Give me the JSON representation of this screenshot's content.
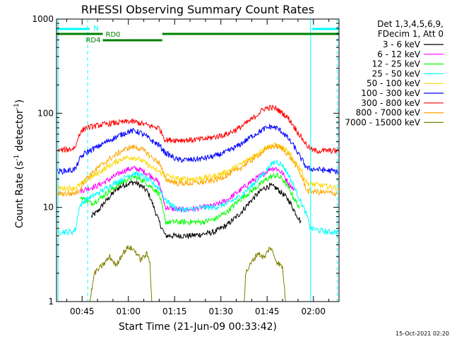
{
  "chart_data": {
    "type": "line",
    "title": "RHESSI Observing Summary Count Rates",
    "xlabel": "Start Time (21-Jun-09 00:33:42)",
    "ylabel_main": "Count Rate (s",
    "ylabel_sup1": "-1",
    "ylabel_mid": " detector",
    "ylabel_sup2": "-1",
    "ylabel_end": ")",
    "y_scale": "log",
    "ylim": [
      1,
      1000
    ],
    "xlim_min": [
      36.7,
      128.3
    ],
    "y_ticks": [
      {
        "value": 1,
        "label": "1"
      },
      {
        "value": 10,
        "label": "10"
      },
      {
        "value": 100,
        "label": "100"
      },
      {
        "value": 1000,
        "label": "1000"
      }
    ],
    "x_ticks": [
      {
        "value": 45,
        "label": "00:45"
      },
      {
        "value": 60,
        "label": "01:00"
      },
      {
        "value": 75,
        "label": "01:15"
      },
      {
        "value": 90,
        "label": "01:30"
      },
      {
        "value": 105,
        "label": "01:45"
      },
      {
        "value": 120,
        "label": "02:00"
      }
    ],
    "legend_header": [
      "Det 1,3,4,5,6,9,",
      "FDecim 1, Att 0"
    ],
    "legend_placement": "right",
    "series": [
      {
        "name": "3 - 6 keV",
        "color": "#000000",
        "x": [
          48,
          50,
          52,
          54,
          56,
          58,
          60,
          62,
          64,
          66,
          67,
          70,
          72,
          76,
          80,
          84,
          88,
          92,
          96,
          100,
          102,
          104,
          106,
          108,
          110,
          112,
          114,
          116
        ],
        "y": [
          8,
          9,
          11,
          13,
          15.5,
          17,
          18,
          18.5,
          17,
          15,
          13,
          7,
          5,
          5,
          5,
          5.2,
          5.5,
          6.5,
          8.5,
          12,
          14,
          16,
          17,
          16,
          14,
          12,
          9,
          7
        ]
      },
      {
        "name": "6 - 12 keV",
        "color": "#ff00ff",
        "x": [
          44.5,
          47,
          50,
          54,
          58,
          60,
          62,
          64,
          66,
          68,
          70,
          72,
          76,
          80,
          84,
          88,
          92,
          96,
          100,
          104,
          106,
          108,
          110,
          112,
          114
        ],
        "y": [
          15,
          16,
          17,
          20,
          24,
          25.5,
          26,
          25,
          23,
          21,
          18,
          10,
          9.5,
          9.5,
          10,
          10.5,
          12,
          15,
          19,
          23,
          26,
          26,
          23,
          18,
          15
        ]
      },
      {
        "name": "12 - 25 keV",
        "color": "#00ff00",
        "x": [
          44.5,
          46,
          48,
          50,
          54,
          58,
          60,
          62,
          64,
          66,
          68,
          70,
          72,
          76,
          80,
          84,
          88,
          92,
          96,
          100,
          104,
          106,
          108,
          110,
          112,
          114,
          115.5
        ],
        "y": [
          13,
          12,
          11,
          12,
          15,
          18.5,
          20,
          21,
          20,
          18,
          16,
          14,
          7,
          7,
          7,
          7,
          7.5,
          9,
          12,
          15,
          19,
          21,
          22,
          20,
          16,
          12,
          10
        ]
      },
      {
        "name": "25 - 50 keV",
        "color": "#00ffff",
        "x": [
          37,
          42,
          43,
          44,
          46,
          48,
          50,
          54,
          58,
          60,
          62,
          64,
          66,
          68,
          70,
          72,
          76,
          80,
          84,
          88,
          92,
          96,
          100,
          104,
          106,
          108,
          110,
          112,
          114,
          118,
          119,
          124,
          128
        ],
        "y": [
          5.5,
          5.5,
          6,
          10,
          12,
          13,
          14,
          17,
          20,
          22,
          23,
          22,
          20,
          18,
          16,
          12,
          9.5,
          9.5,
          10,
          10,
          11,
          13,
          17,
          23,
          28,
          31,
          28,
          22,
          16,
          8,
          6,
          5.5,
          5.5
        ]
      },
      {
        "name": "50 - 100 keV",
        "color": "#ffd700",
        "x": [
          37,
          42,
          44,
          46,
          50,
          54,
          58,
          60,
          62,
          64,
          66,
          68,
          70,
          72,
          76,
          80,
          84,
          88,
          92,
          96,
          100,
          104,
          106,
          108,
          110,
          112,
          114,
          116,
          118,
          128
        ],
        "y": [
          16,
          16,
          17,
          19,
          23,
          28,
          33,
          34,
          34,
          32,
          29,
          26,
          24,
          22,
          20,
          20,
          20.5,
          21.5,
          24,
          28,
          34,
          42,
          45,
          46,
          43,
          38,
          31,
          25,
          18,
          16
        ]
      },
      {
        "name": "100 - 300 keV",
        "color": "#0000ff",
        "x": [
          37,
          42,
          43,
          44,
          46,
          50,
          54,
          58,
          60,
          62,
          64,
          66,
          68,
          70,
          72,
          76,
          80,
          84,
          88,
          92,
          96,
          100,
          104,
          106,
          108,
          110,
          112,
          114,
          116,
          118,
          128
        ],
        "y": [
          24,
          25,
          26,
          32,
          38,
          44,
          52,
          60,
          64,
          65,
          62,
          56,
          50,
          46,
          38,
          32,
          32,
          33,
          35,
          39,
          46,
          57,
          68,
          72,
          70,
          63,
          53,
          43,
          33,
          26,
          24
        ]
      },
      {
        "name": "300 - 800 keV",
        "color": "#ff0000",
        "x": [
          37,
          42,
          43,
          44,
          46,
          50,
          54,
          58,
          60,
          62,
          64,
          66,
          68,
          70,
          72,
          76,
          80,
          84,
          88,
          92,
          96,
          100,
          102,
          104,
          106,
          108,
          110,
          112,
          114,
          116,
          118,
          120,
          128
        ],
        "y": [
          40,
          42,
          45,
          60,
          70,
          74,
          78,
          80,
          82,
          81,
          78,
          75,
          72,
          70,
          52,
          52,
          52,
          53,
          56,
          60,
          70,
          86,
          98,
          112,
          115,
          112,
          100,
          88,
          70,
          56,
          45,
          40,
          40
        ]
      },
      {
        "name": "800 - 7000 keV",
        "color": "#ffa500",
        "x": [
          37,
          42,
          44,
          46,
          50,
          54,
          58,
          60,
          62,
          64,
          66,
          68,
          70,
          72,
          76,
          80,
          84,
          88,
          92,
          96,
          100,
          104,
          106,
          108,
          110,
          112,
          114,
          116,
          118,
          128
        ],
        "y": [
          14,
          14,
          15,
          20,
          26,
          33,
          40,
          43,
          44,
          42,
          38,
          33,
          30,
          20,
          18,
          18,
          18.5,
          19.5,
          22,
          26,
          32,
          40,
          44,
          45,
          42,
          36,
          29,
          22,
          15,
          14
        ]
      },
      {
        "name": "7000 - 15000 keV",
        "color": "#808000",
        "x": [
          47.5,
          49,
          52,
          54,
          56,
          58,
          60,
          62,
          64,
          66,
          67,
          67.6,
          97.6,
          98,
          100,
          102,
          104,
          106,
          108,
          110,
          111
        ],
        "y": [
          1,
          2,
          2.5,
          3,
          2.4,
          3.2,
          3.8,
          3.5,
          2.8,
          3.2,
          2.6,
          1,
          1,
          2,
          2.6,
          3.3,
          2.9,
          3.8,
          2.7,
          2.3,
          1
        ]
      }
    ],
    "flags": [
      {
        "label": "N",
        "color": "#00ffff",
        "segments": [
          [
            36.7,
            47.5
          ],
          [
            119.6,
            128.3
          ]
        ],
        "y_level": 1
      },
      {
        "label": "RD0",
        "color": "#008000",
        "segments": [
          [
            36.7,
            51.7
          ],
          [
            71,
            128.3
          ]
        ],
        "y_level": 2
      },
      {
        "label": "RD4",
        "color": "#008000",
        "segments": [
          [
            51.7,
            71
          ]
        ],
        "y_level": 3
      }
    ],
    "vertical_lines": [
      {
        "x": 37.2,
        "color": "#00ffff",
        "style": "solid"
      },
      {
        "x": 46.8,
        "color": "#00ffff",
        "style": "dashed"
      },
      {
        "x": 119.1,
        "color": "#00ffff",
        "style": "solid"
      },
      {
        "x": 127.7,
        "color": "#00ffff",
        "style": "dashed"
      }
    ],
    "footer_timestamp": "15-Oct-2021 02:20"
  }
}
